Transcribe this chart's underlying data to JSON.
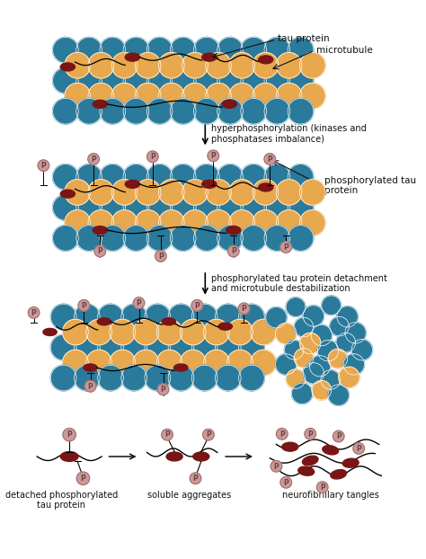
{
  "bg_color": "#ffffff",
  "teal_color": "#2a7a9b",
  "orange_color": "#e8a84e",
  "dark_red_color": "#7a1515",
  "pink_color": "#cc9999",
  "text_color": "#111111",
  "label1": "tau protein",
  "label2": "microtubule",
  "label3": "hyperphosphorylation (kinases and\nphosphatases imbalance)",
  "label4": "phosphorylated tau\nprotein",
  "label5": "phosphorylated tau protein detachment\nand microtubule destabilization",
  "label6": "detached phosphorylated\ntau protein",
  "label7": "soluble aggregates",
  "label8": "neurofibrillary tangles",
  "p_label": "P",
  "fig_width": 4.74,
  "fig_height": 6.22,
  "dpi": 100
}
